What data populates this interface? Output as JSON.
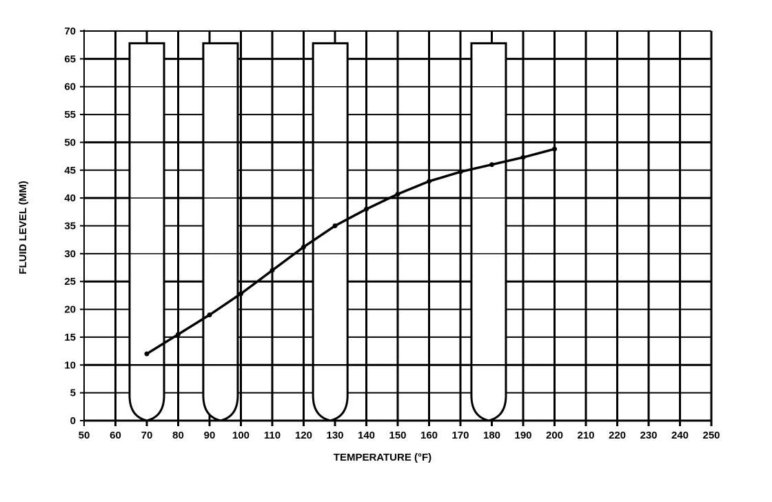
{
  "chart_data": {
    "type": "line",
    "title": "",
    "xlabel": "TEMPERATURE (°F)",
    "ylabel": "FLUID LEVEL (MM)",
    "xlim": [
      50,
      250
    ],
    "ylim": [
      0,
      70
    ],
    "xticks": [
      50,
      60,
      70,
      80,
      90,
      100,
      110,
      120,
      130,
      140,
      150,
      160,
      170,
      180,
      190,
      200,
      210,
      220,
      230,
      240,
      250
    ],
    "yticks": [
      0,
      5,
      10,
      15,
      20,
      25,
      30,
      35,
      40,
      45,
      50,
      55,
      60,
      65,
      70
    ],
    "grid": true,
    "series": [
      {
        "name": "Fluid level",
        "x": [
          70,
          80,
          90,
          100,
          110,
          120,
          130,
          140,
          150,
          160,
          170,
          180,
          190,
          200
        ],
        "y": [
          12,
          15.5,
          19,
          22.8,
          27,
          31.2,
          35,
          38,
          40.7,
          43,
          44.7,
          46,
          47.3,
          48.8
        ]
      }
    ],
    "annotations": {
      "test_tubes_at_temperature": [
        70,
        93.5,
        128.5,
        179
      ]
    },
    "colors": {
      "line": "#000000",
      "grid": "#000000",
      "background": "#ffffff"
    }
  }
}
